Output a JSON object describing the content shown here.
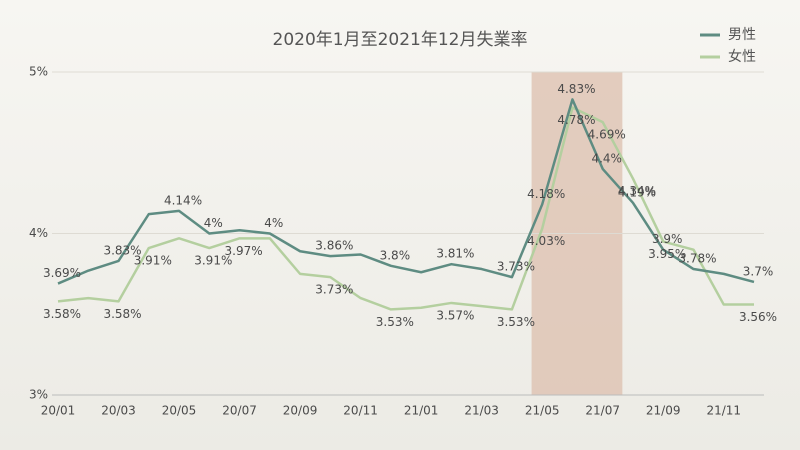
{
  "chart_data": {
    "type": "line",
    "title": "2020年1月至2021年12月失業率",
    "categories": [
      "20/01",
      null,
      "20/03",
      null,
      "20/05",
      null,
      "20/07",
      null,
      "20/09",
      null,
      "20/11",
      null,
      "21/01",
      null,
      "21/03",
      null,
      "21/05",
      null,
      "21/07",
      null,
      "21/09",
      null,
      "21/11",
      null
    ],
    "series": [
      {
        "name": "男性",
        "color": "#5e8c82",
        "values": [
          3.69,
          3.77,
          3.83,
          4.12,
          4.14,
          4.0,
          4.02,
          4.0,
          3.89,
          3.86,
          3.87,
          3.8,
          3.76,
          3.81,
          3.78,
          3.73,
          4.18,
          4.83,
          4.4,
          4.19,
          3.9,
          3.78,
          3.75,
          3.7
        ],
        "value_labels": [
          "3.69%",
          null,
          "3.83%",
          null,
          "4.14%",
          "4%",
          null,
          "4%",
          null,
          "3.86%",
          null,
          "3.8%",
          null,
          "3.81%",
          null,
          "3.73%",
          "4.18%",
          "4.83%",
          "4.4%",
          "4.19%",
          "3.9%",
          "3.78%",
          null,
          "3.7%"
        ]
      },
      {
        "name": "女性",
        "color": "#b4cf9f",
        "values": [
          3.58,
          3.6,
          3.58,
          3.91,
          3.97,
          3.91,
          3.97,
          3.97,
          3.75,
          3.73,
          3.6,
          3.53,
          3.54,
          3.57,
          3.55,
          3.53,
          4.03,
          4.78,
          4.69,
          4.34,
          3.95,
          3.9,
          3.56,
          3.56
        ],
        "value_labels": [
          "3.58%",
          null,
          "3.58%",
          "3.91%",
          null,
          "3.91%",
          "3.97%",
          null,
          null,
          "3.73%",
          null,
          "3.53%",
          null,
          "3.57%",
          null,
          "3.53%",
          "4.03%",
          "4.78%",
          "4.69%",
          "4.34%",
          "3.95%",
          null,
          null,
          "3.56%"
        ]
      }
    ],
    "ylim": [
      3,
      5
    ],
    "yticks": [
      {
        "value": 3,
        "label": "3%"
      },
      {
        "value": 4,
        "label": "4%"
      },
      {
        "value": 5,
        "label": "5%"
      }
    ],
    "grid": true,
    "legend": "top-right"
  }
}
